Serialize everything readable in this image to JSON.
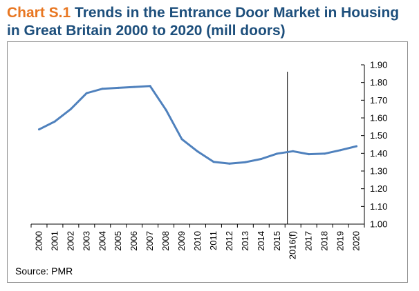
{
  "header": {
    "chart_label": "Chart S.1",
    "title": "Trends in the Entrance Door Market in Housing in Great Britain 2000 to 2020 (mill doors)"
  },
  "source": "Source: PMR",
  "chart_data": {
    "type": "line",
    "title": "Chart S.1 Trends in the Entrance Door Market in Housing in Great Britain 2000 to 2020 (mill doors)",
    "categories": [
      "2000",
      "2001",
      "2002",
      "2003",
      "2004",
      "2005",
      "2006",
      "2007",
      "2008",
      "2009",
      "2010",
      "2011",
      "2012",
      "2013",
      "2014",
      "2015",
      "2016(f)",
      "2017",
      "2018",
      "2019",
      "2020"
    ],
    "series": [
      {
        "values": [
          1.535,
          1.58,
          1.65,
          1.74,
          1.765,
          1.77,
          1.775,
          1.78,
          1.645,
          1.48,
          1.41,
          1.352,
          1.342,
          1.35,
          1.368,
          1.398,
          1.412,
          1.395,
          1.398,
          1.418,
          1.44
        ]
      }
    ],
    "ylim": [
      1.0,
      1.9
    ],
    "yticks": [
      "1.00",
      "1.10",
      "1.20",
      "1.30",
      "1.40",
      "1.50",
      "1.60",
      "1.70",
      "1.80",
      "1.90"
    ],
    "y_axis_position": "right",
    "forecast_marker_category": "2016(f)",
    "line_color": "#4f81bd",
    "grid": false,
    "legend": "none"
  }
}
